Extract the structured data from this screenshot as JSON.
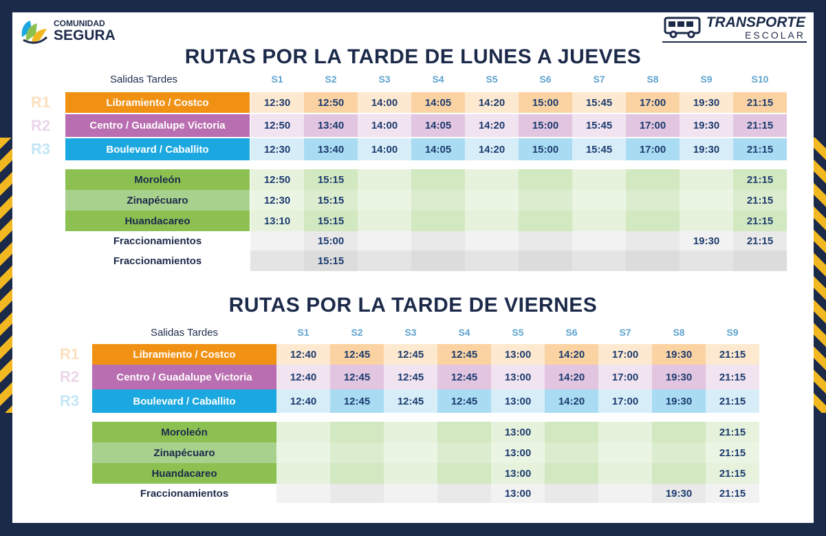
{
  "brand_left": {
    "line1": "COMUNIDAD",
    "line2": "SEGURA"
  },
  "brand_right": {
    "line1": "TRANSPORTE",
    "line2": "ESCOLAR"
  },
  "colors": {
    "r1_name": "#f19114",
    "r1_light": "#fde9d0",
    "r1_dark": "#fbd3a3",
    "r2_name": "#b96eb1",
    "r2_light": "#f1e3f0",
    "r2_dark": "#e2c5e0",
    "r3_name": "#1ba8e0",
    "r3_light": "#d7eef9",
    "r3_dark": "#a9dcf3",
    "green_dark": "#8cc152",
    "green_light": "#a9d18e",
    "green_cell_light": "#e6f2dc",
    "green_cell_dark": "#d2e8c0",
    "gray_light": "#f2f2f2",
    "gray_dark": "#e4e4e4"
  },
  "sections": [
    {
      "title": "RUTAS POR LA TARDE DE LUNES A JUEVES",
      "salidas_label": "Salidas Tardes",
      "headers": [
        "S1",
        "S2",
        "S3",
        "S4",
        "S5",
        "S6",
        "S7",
        "S8",
        "S9",
        "S10"
      ],
      "routes": [
        {
          "label": "R1",
          "name": "Libramiento / Costco",
          "times": [
            "12:30",
            "12:50",
            "14:00",
            "14:05",
            "14:20",
            "15:00",
            "15:45",
            "17:00",
            "19:30",
            "21:15"
          ]
        },
        {
          "label": "R2",
          "name": "Centro / Guadalupe Victoria",
          "times": [
            "12:50",
            "13:40",
            "14:00",
            "14:05",
            "14:20",
            "15:00",
            "15:45",
            "17:00",
            "19:30",
            "21:15"
          ]
        },
        {
          "label": "R3",
          "name": "Boulevard / Caballito",
          "times": [
            "12:30",
            "13:40",
            "14:00",
            "14:05",
            "14:20",
            "15:00",
            "15:45",
            "17:00",
            "19:30",
            "21:15"
          ]
        }
      ],
      "extra": [
        {
          "name": "Moroleón",
          "style": "green_dark",
          "times": [
            "12:50",
            "15:15",
            "",
            "",
            "",
            "",
            "",
            "",
            "",
            "21:15"
          ]
        },
        {
          "name": "Zinapécuaro",
          "style": "green_light",
          "times": [
            "12:30",
            "15:15",
            "",
            "",
            "",
            "",
            "",
            "",
            "",
            "21:15"
          ]
        },
        {
          "name": "Huandacareo",
          "style": "green_dark",
          "times": [
            "13:10",
            "15:15",
            "",
            "",
            "",
            "",
            "",
            "",
            "",
            "21:15"
          ]
        },
        {
          "name": "Fraccionamientos",
          "style": "plain_light",
          "times": [
            "",
            "15:00",
            "",
            "",
            "",
            "",
            "",
            "",
            "19:30",
            "21:15"
          ]
        },
        {
          "name": "Fraccionamientos",
          "style": "plain_dark",
          "times": [
            "",
            "15:15",
            "",
            "",
            "",
            "",
            "",
            "",
            "",
            ""
          ]
        }
      ]
    },
    {
      "title": "RUTAS POR LA TARDE DE VIERNES",
      "salidas_label": "Salidas Tardes",
      "headers": [
        "S1",
        "S2",
        "S3",
        "S4",
        "S5",
        "S6",
        "S7",
        "S8",
        "S9"
      ],
      "routes": [
        {
          "label": "R1",
          "name": "Libramiento / Costco",
          "times": [
            "12:40",
            "12:45",
            "12:45",
            "12:45",
            "13:00",
            "14:20",
            "17:00",
            "19:30",
            "21:15"
          ]
        },
        {
          "label": "R2",
          "name": "Centro / Guadalupe Victoria",
          "times": [
            "12:40",
            "12:45",
            "12:45",
            "12:45",
            "13:00",
            "14:20",
            "17:00",
            "19:30",
            "21:15"
          ]
        },
        {
          "label": "R3",
          "name": "Boulevard / Caballito",
          "times": [
            "12:40",
            "12:45",
            "12:45",
            "12:45",
            "13:00",
            "14:20",
            "17:00",
            "19:30",
            "21:15"
          ]
        }
      ],
      "extra": [
        {
          "name": "Moroleón",
          "style": "green_dark",
          "times": [
            "",
            "",
            "",
            "",
            "13:00",
            "",
            "",
            "",
            "21:15"
          ]
        },
        {
          "name": "Zinapécuaro",
          "style": "green_light",
          "times": [
            "",
            "",
            "",
            "",
            "13:00",
            "",
            "",
            "",
            "21:15"
          ]
        },
        {
          "name": "Huandacareo",
          "style": "green_dark",
          "times": [
            "",
            "",
            "",
            "",
            "13:00",
            "",
            "",
            "",
            "21:15"
          ]
        },
        {
          "name": "Fraccionamientos",
          "style": "plain_light",
          "times": [
            "",
            "",
            "",
            "",
            "13:00",
            "",
            "",
            "19:30",
            "21:15"
          ]
        }
      ]
    }
  ]
}
